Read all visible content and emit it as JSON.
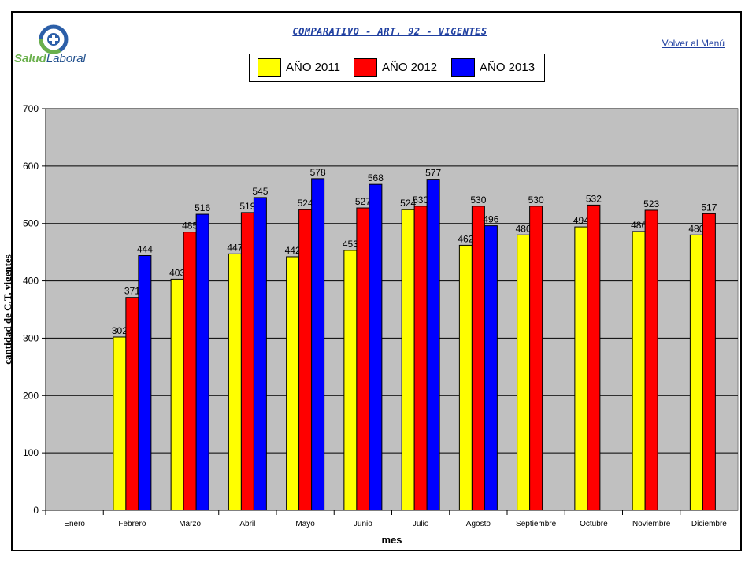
{
  "header": {
    "logo_word1": "Salud",
    "logo_word2": "Laboral",
    "title": "COMPARATIVO - ART. 92 - VIGENTES",
    "back_link": "Volver al Menú "
  },
  "colors": {
    "plot_bg": "#c0c0c0",
    "grid": "#000000",
    "series": [
      "#ffff00",
      "#ff0000",
      "#0000ff"
    ]
  },
  "chart_data": {
    "type": "bar",
    "title": "COMPARATIVO - ART. 92 - VIGENTES",
    "xlabel": "mes",
    "ylabel": "cantidad de C.T. vigentes",
    "ylim": [
      0,
      700
    ],
    "yticks": [
      0,
      100,
      200,
      300,
      400,
      500,
      600,
      700
    ],
    "grid": true,
    "legend_position": "top-center",
    "categories": [
      "Enero",
      "Febrero",
      "Marzo",
      "Abril",
      "Mayo",
      "Junio",
      "Julio",
      "Agosto",
      "Septiembre",
      "Octubre",
      "Noviembre",
      "Diciembre"
    ],
    "series": [
      {
        "name": "AÑO 2011",
        "color": "#ffff00",
        "values": [
          null,
          302,
          403,
          447,
          442,
          453,
          524,
          462,
          480,
          494,
          486,
          480
        ]
      },
      {
        "name": "AÑO 2012",
        "color": "#ff0000",
        "values": [
          null,
          371,
          485,
          519,
          524,
          527,
          530,
          530,
          530,
          532,
          523,
          517
        ]
      },
      {
        "name": "AÑO 2013",
        "color": "#0000ff",
        "values": [
          null,
          444,
          516,
          545,
          578,
          568,
          577,
          496,
          null,
          null,
          null,
          null
        ]
      }
    ]
  }
}
